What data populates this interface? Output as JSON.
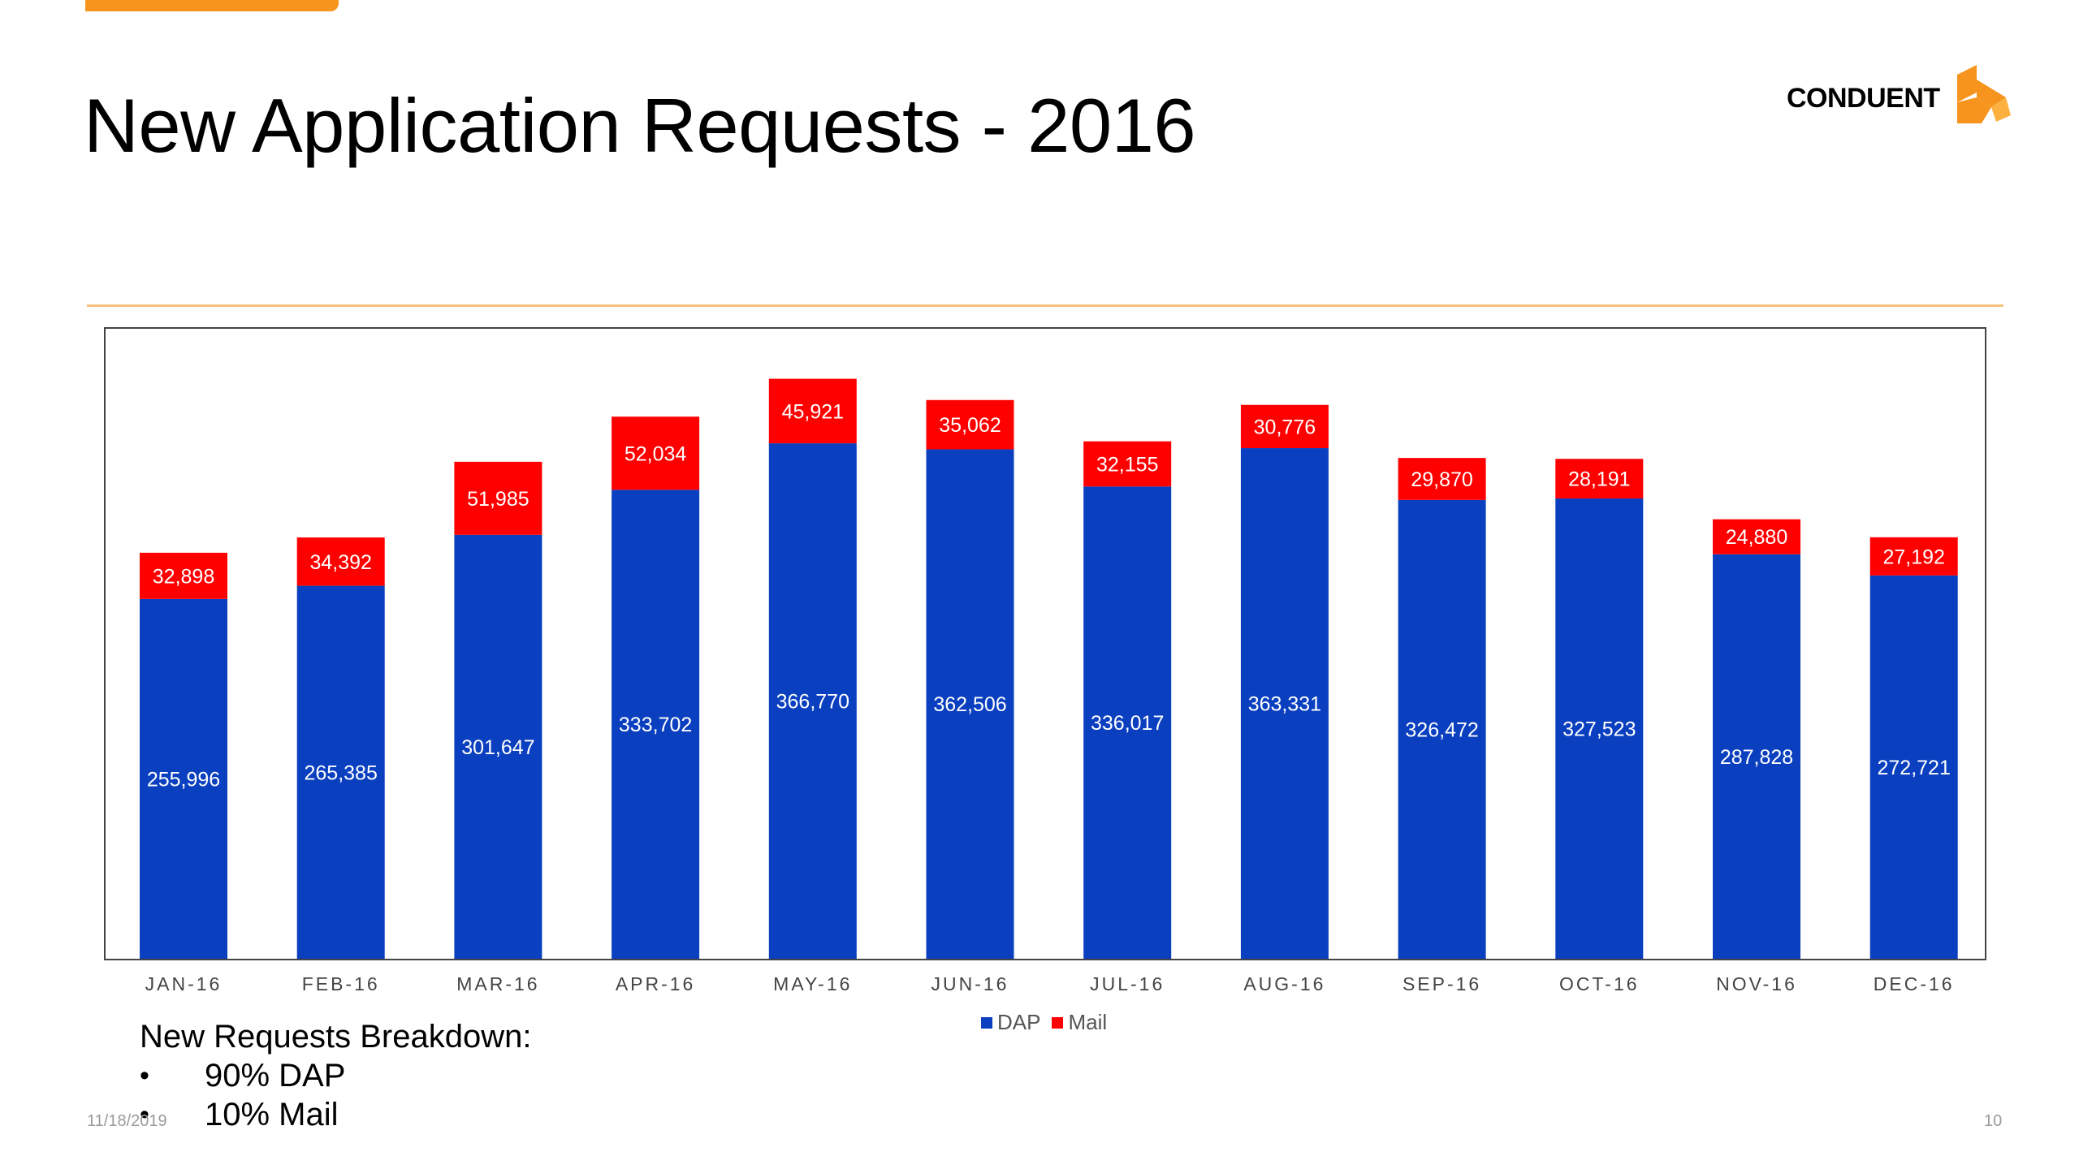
{
  "slide": {
    "title": "New Application Requests - 2016",
    "logo_text": "CONDUENT",
    "accent_color": "#f7941d",
    "footer_date": "11/18/2019",
    "page_number": "10"
  },
  "breakdown": {
    "title": "New Requests Breakdown:",
    "items": [
      "90% DAP",
      "10% Mail"
    ]
  },
  "chart_data": {
    "type": "bar",
    "stacked": true,
    "categories": [
      "JAN-16",
      "FEB-16",
      "MAR-16",
      "APR-16",
      "MAY-16",
      "JUN-16",
      "JUL-16",
      "AUG-16",
      "SEP-16",
      "OCT-16",
      "NOV-16",
      "DEC-16"
    ],
    "series": [
      {
        "name": "DAP",
        "color": "#0a3fbf",
        "values": [
          255996,
          265385,
          301647,
          333702,
          366770,
          362506,
          336017,
          363331,
          326472,
          327523,
          287828,
          272721
        ],
        "labels": [
          "255,996",
          "265,385",
          "301,647",
          "333,702",
          "366,770",
          "362,506",
          "336,017",
          "363,331",
          "326,472",
          "327,523",
          "287,828",
          "272,721"
        ]
      },
      {
        "name": "Mail",
        "color": "#ff0000",
        "values": [
          32898,
          34392,
          51985,
          52034,
          45921,
          35062,
          32155,
          30776,
          29870,
          28191,
          24880,
          27192
        ],
        "labels": [
          "32,898",
          "34,392",
          "51,985",
          "52,034",
          "45,921",
          "35,062",
          "32,155",
          "30,776",
          "29,870",
          "28,191",
          "24,880",
          "27,192"
        ]
      }
    ],
    "ylim": [
      0,
      450000
    ],
    "grid": false,
    "legend_position": "bottom-center"
  }
}
